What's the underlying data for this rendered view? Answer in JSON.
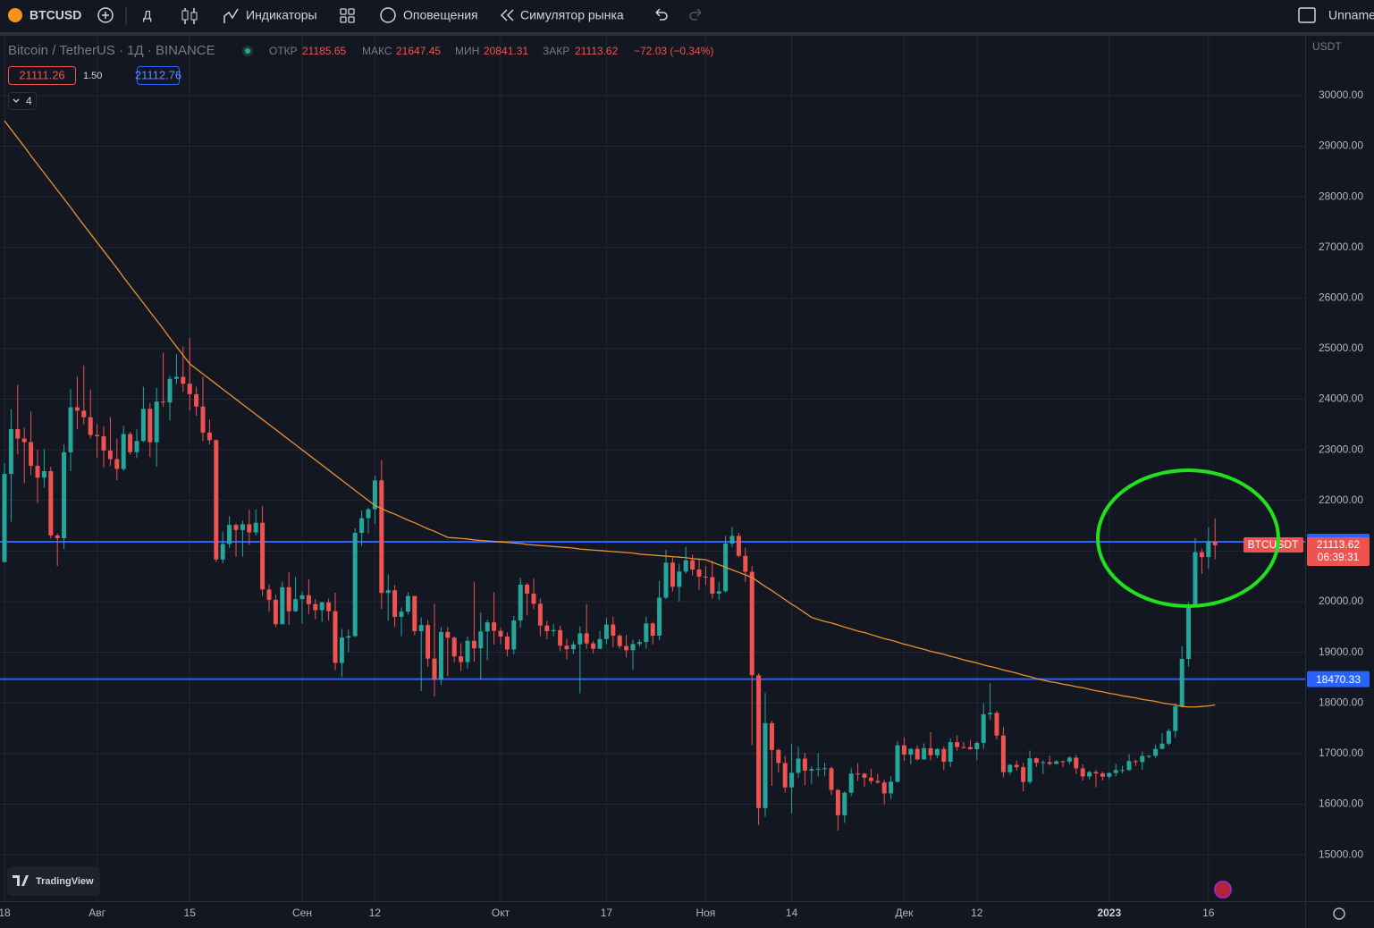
{
  "toolbar": {
    "symbol": "BTCUSD",
    "interval": "Д",
    "indicators": "Индикаторы",
    "alerts": "Оповещения",
    "replay": "Симулятор рынка",
    "layout_name": "Unname"
  },
  "legend": {
    "open_label": "ОТКР",
    "high_label": "МАКС",
    "low_label": "МИН",
    "close_label": "ЗАКР",
    "change": "−72.03 (−0.34%)",
    "bid": "21111.26",
    "spread": "1.50",
    "ask": "21112.76",
    "indicator_count": "4"
  },
  "price_axis": {
    "currency": "USDT",
    "symbol_tag": "BTCUSDT",
    "countdown": "06:39:31"
  },
  "branding": "TradingView",
  "chart_data": {
    "type": "candlestick",
    "title": "Bitcoin / TetherUS · 1Д · BINANCE",
    "categories": [
      "18",
      null,
      null,
      null,
      null,
      null,
      null,
      null,
      null,
      null,
      null,
      null,
      null,
      null,
      "Авг",
      null,
      null,
      null,
      null,
      null,
      null,
      null,
      null,
      null,
      null,
      null,
      null,
      null,
      "15",
      null,
      null,
      null,
      null,
      null,
      null,
      null,
      null,
      null,
      null,
      null,
      null,
      null,
      null,
      null,
      null,
      "Сен",
      null,
      null,
      null,
      null,
      null,
      null,
      null,
      null,
      null,
      null,
      "12",
      null,
      null,
      null,
      null,
      null,
      null,
      null,
      null,
      null,
      null,
      null,
      null,
      null,
      null,
      null,
      null,
      null,
      null,
      "Окт",
      null,
      null,
      null,
      null,
      null,
      null,
      null,
      null,
      null,
      null,
      null,
      null,
      null,
      null,
      null,
      "17",
      null,
      null,
      null,
      null,
      null,
      null,
      null,
      null,
      null,
      null,
      null,
      null,
      null,
      null,
      "Ноя",
      null,
      null,
      null,
      null,
      null,
      null,
      null,
      null,
      null,
      null,
      null,
      null,
      "14",
      null,
      null,
      null,
      null,
      null,
      null,
      null,
      null,
      null,
      null,
      null,
      null,
      null,
      null,
      null,
      null,
      "Дек",
      null,
      null,
      null,
      null,
      null,
      null,
      null,
      null,
      null,
      null,
      "12",
      null,
      null,
      null,
      null,
      null,
      null,
      null,
      null,
      null,
      null,
      null,
      null,
      null,
      null,
      null,
      null,
      null,
      null,
      null,
      "2023",
      null,
      null,
      null,
      null,
      null,
      null,
      null,
      null,
      null,
      null,
      null,
      null,
      null,
      null,
      "16",
      null
    ],
    "open": [
      20785,
      22525,
      23410,
      23223,
      23152,
      22684,
      22451,
      22579,
      21310,
      21254,
      22952,
      23842,
      23774,
      23643,
      23293,
      23268,
      22987,
      22818,
      22622,
      23312,
      22954,
      23175,
      23810,
      23150,
      23954,
      23935,
      24403,
      24442,
      24306,
      24100,
      23855,
      23342,
      23191,
      20834,
      21140,
      21517,
      21416,
      21529,
      21368,
      21560,
      20241,
      20037,
      19555,
      20285,
      19811,
      20050,
      20127,
      19952,
      19832,
      19986,
      19812,
      18790,
      19290,
      19320,
      21360,
      21650,
      21826,
      22396,
      20173,
      20226,
      19701,
      19803,
      20113,
      19416,
      19538,
      18875,
      18461,
      19401,
      19289,
      18920,
      18807,
      19227,
      19080,
      19412,
      19591,
      19423,
      19311,
      19056,
      19629,
      20337,
      20158,
      19960,
      19530,
      19417,
      19439,
      19131,
      19060,
      19155,
      19375,
      19176,
      19069,
      19262,
      19549,
      19327,
      19123,
      19041,
      19164,
      19204,
      19570,
      19329,
      20080,
      20771,
      20295,
      20595,
      20818,
      20635,
      20495,
      20485,
      20159,
      20208,
      21148,
      21300,
      20905,
      20591,
      18547,
      15922,
      17601,
      17070,
      16812,
      16330,
      16619,
      16900,
      16662,
      16692,
      16700,
      16710,
      16280,
      15781,
      16226,
      16603,
      16599,
      16522,
      16458,
      16428,
      16212,
      16442,
      17163,
      16978,
      17092,
      16885,
      17105,
      16967,
      17089,
      16837,
      17224,
      17128,
      17127,
      17085,
      17209,
      17774,
      17803,
      17356,
      16632,
      16776,
      16731,
      16439,
      16906,
      16817,
      16830,
      16796,
      16847,
      16841,
      16919,
      16707,
      16547,
      16633,
      16607,
      16542,
      16616,
      16672,
      16675,
      16850,
      16831,
      16951,
      16955,
      17091,
      17196,
      17446,
      17934,
      18869,
      19910,
      20977,
      20881,
      21185.65
    ],
    "high": [
      22740,
      23800,
      24280,
      23442,
      23756,
      23000,
      23014,
      22666,
      21347,
      23112,
      24199,
      24442,
      24668,
      24194,
      23510,
      23466,
      23647,
      23223,
      23472,
      23354,
      23402,
      24245,
      23926,
      24226,
      24918,
      24458,
      24888,
      25047,
      25211,
      24247,
      24446,
      23600,
      23208,
      21382,
      21692,
      21548,
      21600,
      21815,
      21819,
      21886,
      20340,
      20141,
      20400,
      20579,
      20490,
      20198,
      20445,
      20055,
      20000,
      20058,
      20180,
      19463,
      19450,
      21450,
      21800,
      21860,
      22488,
      22799,
      20540,
      20330,
      19890,
      20189,
      20115,
      19688,
      19634,
      19956,
      19500,
      19500,
      19316,
      19180,
      19316,
      20385,
      19790,
      19645,
      20185,
      19484,
      19395,
      19719,
      20475,
      20365,
      20456,
      20059,
      19627,
      19558,
      19525,
      19268,
      19219,
      19513,
      19951,
      19227,
      19425,
      19676,
      19706,
      19360,
      19347,
      19250,
      19257,
      19700,
      19601,
      20415,
      21020,
      20876,
      20750,
      21085,
      20931,
      20845,
      20700,
      20800,
      20394,
      21302,
      21480,
      21365,
      21069,
      20700,
      18587,
      18199,
      17650,
      17099,
      16952,
      17190,
      17134,
      17015,
      16751,
      17011,
      16820,
      16746,
      16300,
      16253,
      16708,
      16812,
      16620,
      16701,
      16600,
      16482,
      16548,
      17249,
      17320,
      17105,
      17159,
      17202,
      17424,
      17107,
      17142,
      17299,
      17360,
      17227,
      17270,
      17241,
      18000,
      18387,
      17846,
      17531,
      16796,
      16863,
      16815,
      17061,
      16920,
      16866,
      16955,
      16868,
      16860,
      16944,
      16972,
      16785,
      16664,
      16677,
      16644,
      16630,
      16795,
      16760,
      16991,
      16879,
      17041,
      16965,
      17176,
      17398,
      17491,
      17992,
      19117,
      19992,
      21258,
      21050,
      21466,
      21647.45
    ],
    "low": [
      20770,
      21580,
      22910,
      22340,
      22500,
      21950,
      22250,
      21250,
      20706,
      21042,
      22582,
      23414,
      23502,
      23227,
      22850,
      22655,
      22681,
      22400,
      22587,
      22909,
      22838,
      23154,
      22858,
      22665,
      23852,
      23580,
      24296,
      24144,
      23774,
      23671,
      23180,
      23108,
      20783,
      20761,
      21065,
      20890,
      20890,
      21123,
      21310,
      20110,
      19800,
      19500,
      19550,
      19540,
      19797,
      19565,
      19755,
      19655,
      19600,
      19633,
      18650,
      18510,
      19000,
      19300,
      21100,
      21350,
      21538,
      19860,
      19620,
      19497,
      19320,
      19748,
      19335,
      18232,
      18711,
      18125,
      18356,
      18531,
      18805,
      18629,
      18680,
      18816,
      18471,
      18843,
      19155,
      19160,
      18920,
      18959,
      19490,
      19730,
      19855,
      19320,
      19255,
      19316,
      19020,
      18860,
      18966,
      18190,
      19070,
      18975,
      19063,
      19160,
      19100,
      19070,
      18900,
      18650,
      19112,
      19070,
      19157,
      19240,
      20050,
      20200,
      20000,
      20556,
      20515,
      20237,
      20330,
      20062,
      20034,
      20180,
      21080,
      20880,
      20386,
      17166,
      15588,
      15754,
      16361,
      16631,
      16229,
      15815,
      16527,
      16378,
      16401,
      16546,
      16550,
      16180,
      15476,
      15630,
      16160,
      16458,
      16342,
      16400,
      16400,
      16001,
      16100,
      16428,
      16855,
      16787,
      16865,
      16878,
      16868,
      16906,
      16678,
      16733,
      17058,
      17092,
      17071,
      16871,
      17089,
      17660,
      17275,
      16527,
      16585,
      16663,
      16256,
      16398,
      16734,
      16592,
      16760,
      16788,
      16730,
      16790,
      16592,
      16465,
      16488,
      16333,
      16470,
      16499,
      16548,
      16608,
      16655,
      16753,
      16679,
      16908,
      16911,
      17091,
      17161,
      17320,
      17910,
      18713,
      19889,
      20552,
      20659,
      20841.31
    ],
    "close": [
      22525,
      23410,
      23223,
      23152,
      22684,
      22451,
      22579,
      21310,
      21254,
      22952,
      23842,
      23774,
      23643,
      23293,
      23268,
      22987,
      22818,
      22622,
      23312,
      22954,
      23175,
      23810,
      23150,
      23954,
      23935,
      24403,
      24442,
      24306,
      24100,
      23855,
      23342,
      23191,
      20834,
      21140,
      21517,
      21416,
      21529,
      21368,
      21560,
      20241,
      20037,
      19555,
      20285,
      19811,
      20050,
      20127,
      19952,
      19832,
      19986,
      19812,
      18790,
      19290,
      19320,
      21360,
      21650,
      21826,
      22396,
      20173,
      20226,
      19701,
      19803,
      20113,
      19416,
      19538,
      18875,
      18461,
      19401,
      19289,
      18920,
      18807,
      19227,
      19080,
      19412,
      19591,
      19423,
      19311,
      19056,
      19629,
      20337,
      20158,
      19960,
      19530,
      19417,
      19439,
      19131,
      19060,
      19155,
      19375,
      19176,
      19069,
      19262,
      19549,
      19327,
      19123,
      19041,
      19164,
      19204,
      19570,
      19329,
      20080,
      20771,
      20295,
      20595,
      20818,
      20635,
      20495,
      20485,
      20159,
      20208,
      21148,
      21300,
      20905,
      20591,
      18547,
      15922,
      17601,
      17070,
      16812,
      16330,
      16619,
      16900,
      16662,
      16692,
      16700,
      16710,
      16280,
      15781,
      16226,
      16603,
      16599,
      16522,
      16458,
      16428,
      16212,
      16442,
      17163,
      16978,
      17092,
      16885,
      17105,
      16967,
      17089,
      16837,
      17224,
      17128,
      17127,
      17085,
      17209,
      17774,
      17803,
      17356,
      16632,
      16776,
      16731,
      16439,
      16906,
      16817,
      16830,
      16796,
      16847,
      16841,
      16919,
      16707,
      16547,
      16633,
      16607,
      16542,
      16616,
      16672,
      16675,
      16850,
      16831,
      16951,
      16955,
      17091,
      17196,
      17446,
      17934,
      18869,
      19910,
      20977,
      20881,
      21185.65,
      21113.62
    ],
    "up_color": "#26a69a",
    "down_color": "#ef5350",
    "ma": {
      "color": "#e8922c",
      "values": [
        29500,
        29330,
        29160,
        28990,
        28810,
        28640,
        28470,
        28300,
        28130,
        27960,
        27790,
        27610,
        27440,
        27270,
        27100,
        26930,
        26760,
        26590,
        26410,
        26240,
        26070,
        25900,
        25730,
        25560,
        25390,
        25210,
        25040,
        24870,
        24700,
        24600,
        24500,
        24400,
        24300,
        24200,
        24100,
        24000,
        23900,
        23800,
        23700,
        23600,
        23500,
        23400,
        23300,
        23200,
        23100,
        23000,
        22900,
        22800,
        22700,
        22600,
        22500,
        22400,
        22300,
        22200,
        22100,
        22000,
        21900,
        21840,
        21780,
        21730,
        21670,
        21610,
        21560,
        21500,
        21440,
        21390,
        21330,
        21270,
        21260,
        21250,
        21240,
        21220,
        21210,
        21200,
        21190,
        21180,
        21170,
        21160,
        21150,
        21130,
        21120,
        21110,
        21100,
        21090,
        21080,
        21070,
        21060,
        21040,
        21030,
        21020,
        21010,
        21000,
        20990,
        20980,
        20970,
        20960,
        20940,
        20930,
        20920,
        20910,
        20900,
        20890,
        20880,
        20870,
        20850,
        20840,
        20830,
        20780,
        20730,
        20680,
        20630,
        20580,
        20530,
        20480,
        20390,
        20300,
        20220,
        20130,
        20040,
        19950,
        19870,
        19780,
        19690,
        19650,
        19610,
        19580,
        19540,
        19500,
        19460,
        19420,
        19390,
        19350,
        19310,
        19270,
        19240,
        19200,
        19160,
        19130,
        19090,
        19060,
        19020,
        18990,
        18960,
        18920,
        18890,
        18850,
        18820,
        18790,
        18750,
        18720,
        18690,
        18650,
        18620,
        18590,
        18550,
        18520,
        18480,
        18450,
        18420,
        18400,
        18370,
        18350,
        18320,
        18300,
        18270,
        18240,
        18220,
        18190,
        18170,
        18140,
        18120,
        18100,
        18070,
        18050,
        18030,
        18000,
        17980,
        17960,
        17930,
        17920,
        17920,
        17930,
        17940,
        17960
      ]
    },
    "hlines": [
      {
        "value": 21183.08,
        "color": "#2962ff"
      },
      {
        "value": 18470.33,
        "color": "#2962ff"
      }
    ],
    "ylim": [
      14083,
      31181
    ],
    "yticks": [
      {
        "value": 15000,
        "label": "15000.00"
      },
      {
        "value": 16000,
        "label": "16000.00"
      },
      {
        "value": 17000,
        "label": "17000.00"
      },
      {
        "value": 18000,
        "label": "18000.00"
      },
      {
        "value": 19000,
        "label": "19000.00"
      },
      {
        "value": 20000,
        "label": "20000.00"
      },
      {
        "value": 21000,
        "label": "21000.00"
      },
      {
        "value": 22000,
        "label": "22000.00"
      },
      {
        "value": 23000,
        "label": "23000.00"
      },
      {
        "value": 24000,
        "label": "24000.00"
      },
      {
        "value": 25000,
        "label": "25000.00"
      },
      {
        "value": 26000,
        "label": "26000.00"
      },
      {
        "value": 27000,
        "label": "27000.00"
      },
      {
        "value": 28000,
        "label": "28000.00"
      },
      {
        "value": 29000,
        "label": "29000.00"
      },
      {
        "value": 30000,
        "label": "30000.00"
      }
    ],
    "grid": true
  }
}
